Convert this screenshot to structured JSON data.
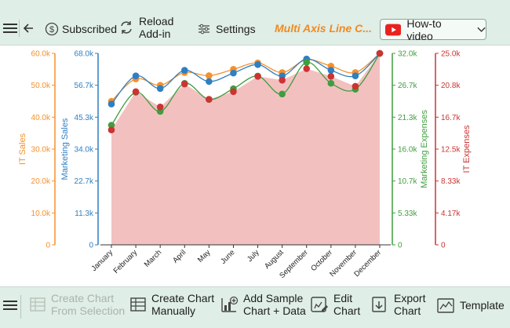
{
  "toolbar": {
    "subscribed_label": "Subscribed",
    "reload_line1": "Reload",
    "reload_line2": "Add-in",
    "settings_label": "Settings",
    "title": "Multi Axis Line C...",
    "howto_label": "How-to video"
  },
  "bottom": {
    "create_from_selection_line1": "Create Chart",
    "create_from_selection_line2": "From Selection",
    "create_manually_line1": "Create Chart",
    "create_manually_line2": "Manually",
    "add_sample_line1": "Add Sample",
    "add_sample_line2": "Chart + Data",
    "edit_line1": "Edit",
    "edit_line2": "Chart",
    "export_line1": "Export",
    "export_line2": "Chart",
    "template_label": "Template"
  },
  "colors": {
    "it_sales": "#f5902c",
    "marketing_sales": "#2f7fc1",
    "marketing_expenses": "#3f9e3f",
    "it_expenses": "#cc3333",
    "area_fill": "#f3c0c0"
  },
  "chart_data": {
    "type": "line",
    "categories": [
      "January",
      "February",
      "March",
      "April",
      "May",
      "June",
      "July",
      "August",
      "September",
      "October",
      "November",
      "December"
    ],
    "axes": [
      {
        "id": "it_sales",
        "label": "IT Sales",
        "ticks": [
          "0",
          "10.0k",
          "20.0k",
          "30.0k",
          "40.0k",
          "50.0k",
          "60.0k"
        ],
        "range": [
          0,
          60000
        ]
      },
      {
        "id": "marketing_sales",
        "label": "Marketing Sales",
        "ticks": [
          "0",
          "11.3k",
          "22.7k",
          "34.0k",
          "45.3k",
          "56.7k",
          "68.0k"
        ],
        "range": [
          0,
          68000
        ]
      },
      {
        "id": "marketing_expenses",
        "label": "Marketing Expenses",
        "ticks": [
          "0",
          "5.33k",
          "10.7k",
          "16.0k",
          "21.3k",
          "26.7k",
          "32.0k"
        ],
        "range": [
          0,
          32000
        ]
      },
      {
        "id": "it_expenses",
        "label": "IT Expenses",
        "ticks": [
          "0",
          "4.17k",
          "8.33k",
          "12.5k",
          "16.7k",
          "20.8k",
          "25.0k"
        ],
        "range": [
          0,
          25000
        ]
      }
    ],
    "series": [
      {
        "name": "IT Sales",
        "axis": "it_sales",
        "values": [
          45000,
          52000,
          50000,
          54000,
          53000,
          55000,
          57000,
          54000,
          58000,
          56000,
          54000,
          60000
        ]
      },
      {
        "name": "Marketing Sales",
        "axis": "marketing_sales",
        "values": [
          50000,
          60000,
          55500,
          62000,
          58000,
          61000,
          64000,
          60000,
          66000,
          62000,
          60000,
          68000
        ]
      },
      {
        "name": "Marketing Expenses",
        "axis": "marketing_expenses",
        "values": [
          20000,
          25500,
          22300,
          27000,
          24300,
          26100,
          28200,
          25200,
          30500,
          27000,
          26000,
          32000
        ]
      },
      {
        "name": "IT Expenses",
        "axis": "it_expenses",
        "values": [
          15000,
          20000,
          18000,
          21000,
          19000,
          20000,
          22000,
          21500,
          23000,
          22000,
          20700,
          25000
        ]
      }
    ]
  }
}
